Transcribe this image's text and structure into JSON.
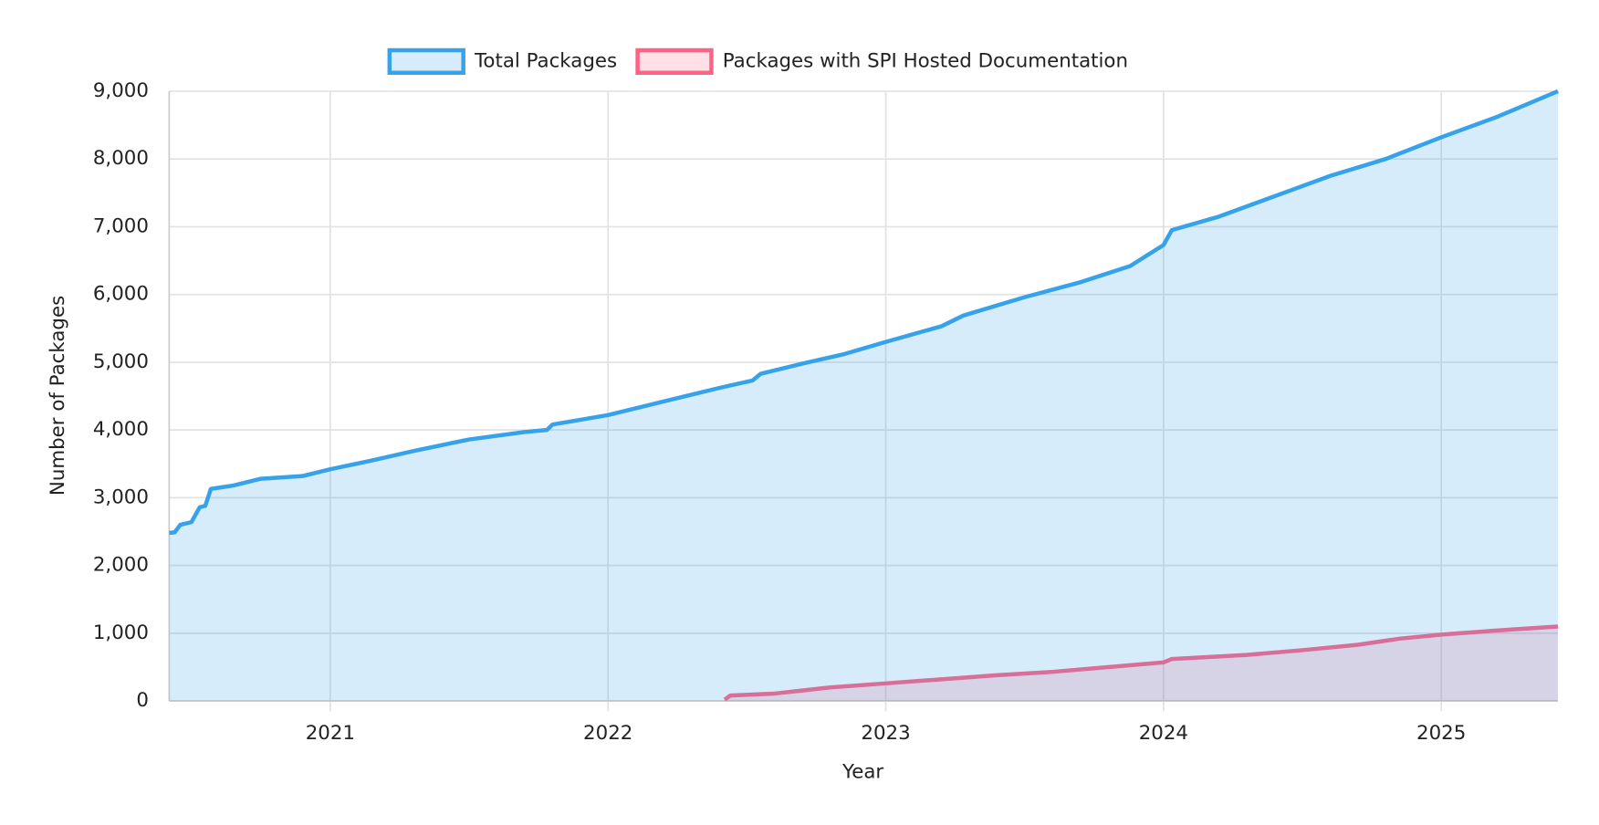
{
  "chart_data": {
    "type": "area",
    "x_label": "Year",
    "y_label": "Number of Packages",
    "xlim": [
      2020.42,
      2025.42
    ],
    "xticks": [
      2021,
      2022,
      2023,
      2024,
      2025
    ],
    "ylim": [
      0,
      9000
    ],
    "yticks": [
      0,
      {
        "value": 1000,
        "label": "1,000"
      },
      {
        "value": 2000,
        "label": "2,000"
      },
      {
        "value": 3000,
        "label": "3,000"
      },
      {
        "value": 4000,
        "label": "4,000"
      },
      {
        "value": 5000,
        "label": "5,000"
      },
      {
        "value": 6000,
        "label": "6,000"
      },
      {
        "value": 7000,
        "label": "7,000"
      },
      {
        "value": 8000,
        "label": "8,000"
      },
      {
        "value": 9000,
        "label": "9,000"
      }
    ],
    "grid": true,
    "legend": "top",
    "series": [
      {
        "name": "Total Packages",
        "color": "#36a2eb",
        "x": [
          2020.42,
          2020.44,
          2020.46,
          2020.5,
          2020.53,
          2020.55,
          2020.57,
          2020.65,
          2020.75,
          2020.9,
          2021.0,
          2021.15,
          2021.3,
          2021.5,
          2021.7,
          2021.78,
          2021.8,
          2022.0,
          2022.2,
          2022.4,
          2022.52,
          2022.55,
          2022.7,
          2022.85,
          2023.0,
          2023.2,
          2023.28,
          2023.5,
          2023.7,
          2023.88,
          2024.0,
          2024.03,
          2024.2,
          2024.4,
          2024.6,
          2024.8,
          2025.0,
          2025.2,
          2025.42
        ],
        "values": [
          2480,
          2490,
          2600,
          2640,
          2860,
          2880,
          3130,
          3180,
          3280,
          3320,
          3420,
          3550,
          3690,
          3860,
          3970,
          4000,
          4080,
          4220,
          4420,
          4620,
          4730,
          4830,
          4980,
          5120,
          5300,
          5530,
          5690,
          5960,
          6180,
          6420,
          6730,
          6950,
          7150,
          7450,
          7750,
          8000,
          8320,
          8620,
          9000
        ]
      },
      {
        "name": "Packages with SPI Hosted Documentation",
        "color": "#ff6384",
        "x": [
          2022.42,
          2022.44,
          2022.6,
          2022.8,
          2023.0,
          2023.2,
          2023.4,
          2023.6,
          2023.8,
          2024.0,
          2024.03,
          2024.3,
          2024.5,
          2024.7,
          2024.85,
          2025.0,
          2025.2,
          2025.42
        ],
        "values": [
          20,
          80,
          110,
          200,
          260,
          320,
          380,
          430,
          500,
          570,
          620,
          680,
          750,
          830,
          920,
          980,
          1040,
          1100
        ]
      }
    ]
  }
}
